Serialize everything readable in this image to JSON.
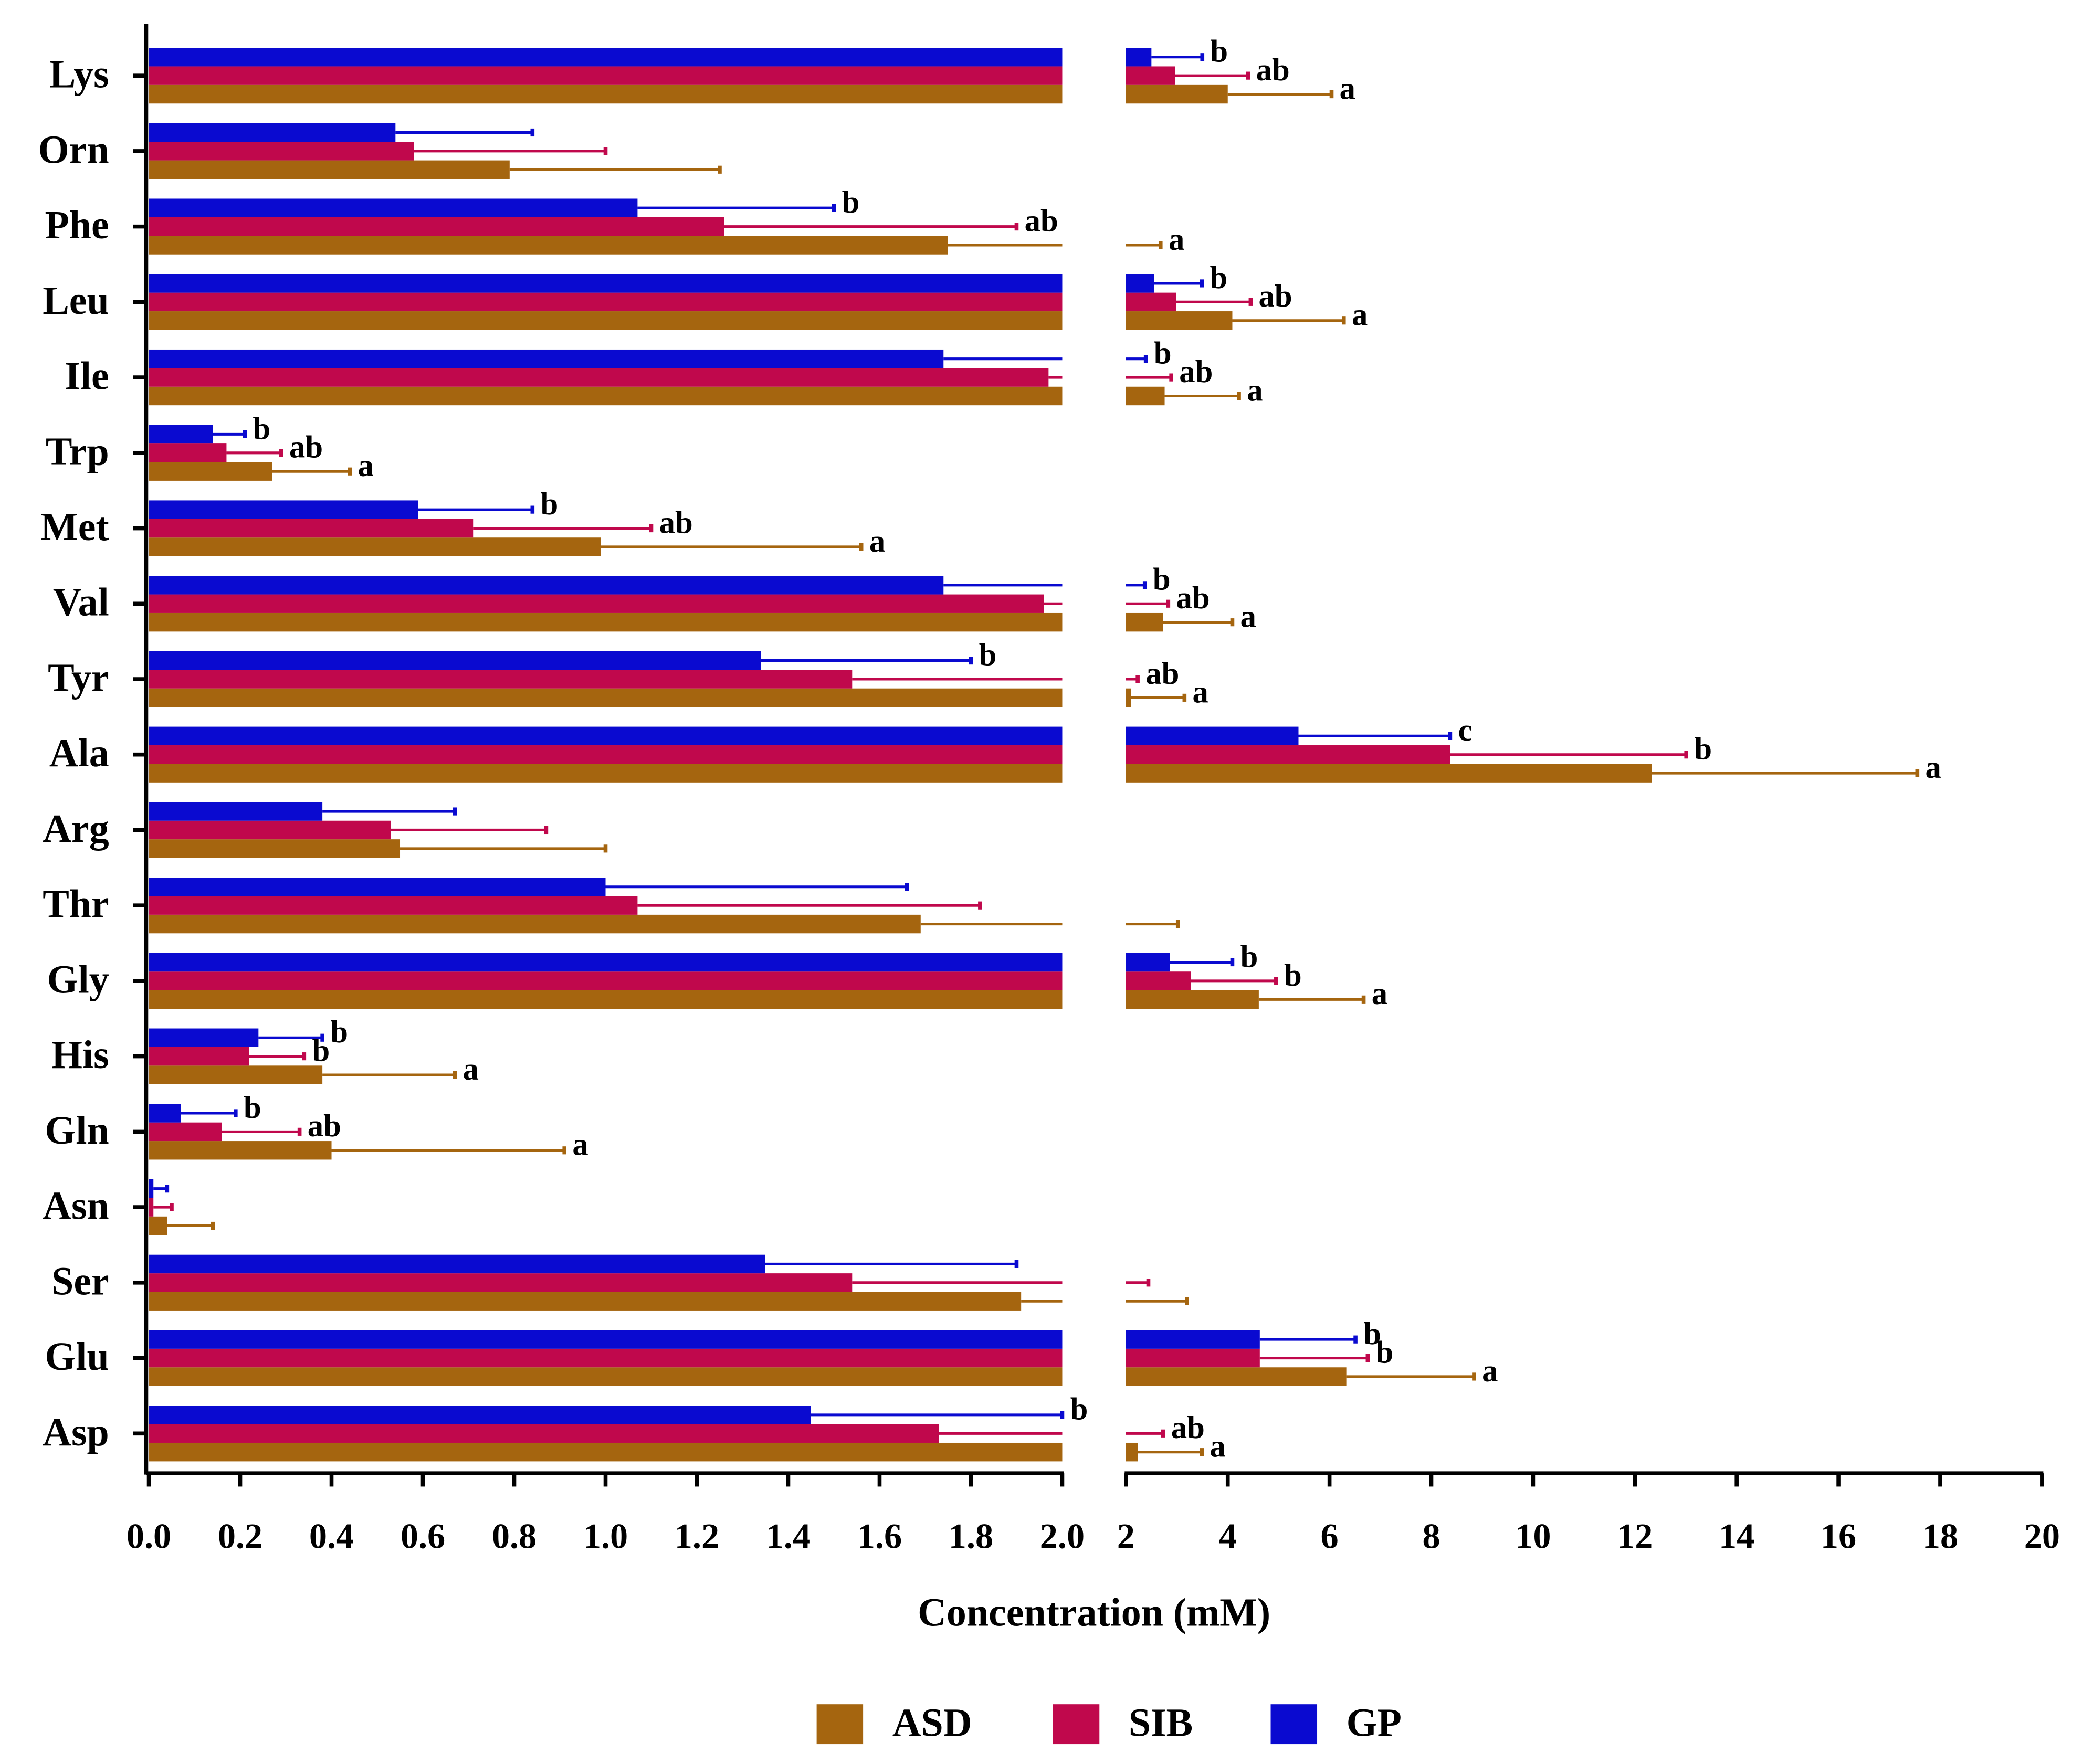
{
  "chart_data": {
    "type": "bar",
    "orientation": "horizontal",
    "x_label": "Concentration (mM)",
    "categories": [
      "Lys",
      "Orn",
      "Phe",
      "Leu",
      "Ile",
      "Trp",
      "Met",
      "Val",
      "Tyr",
      "Ala",
      "Arg",
      "Thr",
      "Gly",
      "His",
      "Gln",
      "Asn",
      "Ser",
      "Glu",
      "Asp"
    ],
    "xlim": [
      0,
      2
    ],
    "xticks": [
      {
        "value": 0,
        "label": "0.0"
      },
      0.2,
      0.4,
      0.6,
      0.8,
      {
        "value": 1,
        "label": "1.0"
      },
      1.2,
      1.4,
      1.6,
      1.8,
      {
        "value": 2,
        "label": "2.0"
      }
    ],
    "x2lim": [
      2,
      20
    ],
    "x2ticks": [
      2,
      4,
      6,
      8,
      10,
      12,
      14,
      16,
      18,
      20
    ],
    "series": [
      {
        "name": "ASD",
        "color": "#a5650f",
        "values": [
          4.0,
          0.79,
          1.75,
          4.09,
          2.76,
          0.27,
          0.99,
          2.73,
          2.1,
          12.33,
          0.55,
          1.69,
          4.61,
          0.38,
          0.4,
          0.04,
          1.91,
          6.33,
          2.23
        ],
        "errors": [
          2.04,
          0.46,
          0.93,
          2.19,
          1.46,
          0.17,
          0.57,
          1.36,
          1.05,
          5.22,
          0.45,
          1.33,
          2.06,
          0.29,
          0.51,
          0.1,
          1.29,
          2.51,
          1.26
        ],
        "labels": [
          "a",
          null,
          "a",
          "a",
          "a",
          "a",
          "a",
          "a",
          "a",
          "a",
          null,
          null,
          "a",
          "a",
          "a",
          null,
          null,
          "a",
          "a"
        ]
      },
      {
        "name": "SIB",
        "color": "#c0084c",
        "values": [
          2.97,
          0.58,
          1.26,
          2.99,
          1.97,
          0.17,
          0.71,
          1.96,
          1.54,
          8.37,
          0.53,
          1.07,
          3.28,
          0.22,
          0.16,
          0.01,
          1.54,
          4.63,
          1.73
        ],
        "errors": [
          1.43,
          0.42,
          0.64,
          1.46,
          0.92,
          0.12,
          0.39,
          0.87,
          0.69,
          4.64,
          0.34,
          0.75,
          1.67,
          0.12,
          0.17,
          0.04,
          0.9,
          2.12,
          1.0
        ],
        "labels": [
          "ab",
          null,
          "ab",
          "ab",
          "ab",
          "ab",
          "ab",
          "ab",
          "ab",
          "b",
          null,
          null,
          "b",
          "b",
          "ab",
          null,
          null,
          "b",
          "ab"
        ]
      },
      {
        "name": "GP",
        "color": "#0a0ad0",
        "values": [
          2.5,
          0.54,
          1.07,
          2.55,
          1.74,
          0.14,
          0.59,
          1.74,
          1.34,
          5.39,
          0.38,
          1.0,
          2.86,
          0.24,
          0.07,
          0.01,
          1.35,
          4.63,
          1.45
        ],
        "errors": [
          1.0,
          0.3,
          0.43,
          0.94,
          0.65,
          0.07,
          0.25,
          0.63,
          0.46,
          2.98,
          0.29,
          0.66,
          1.23,
          0.14,
          0.12,
          0.03,
          0.55,
          1.88,
          0.55
        ],
        "labels": [
          "b",
          null,
          "b",
          "b",
          "b",
          "b",
          "b",
          "b",
          "b",
          "c",
          null,
          null,
          "b",
          "b",
          "b",
          null,
          null,
          "b",
          "b"
        ]
      }
    ]
  }
}
